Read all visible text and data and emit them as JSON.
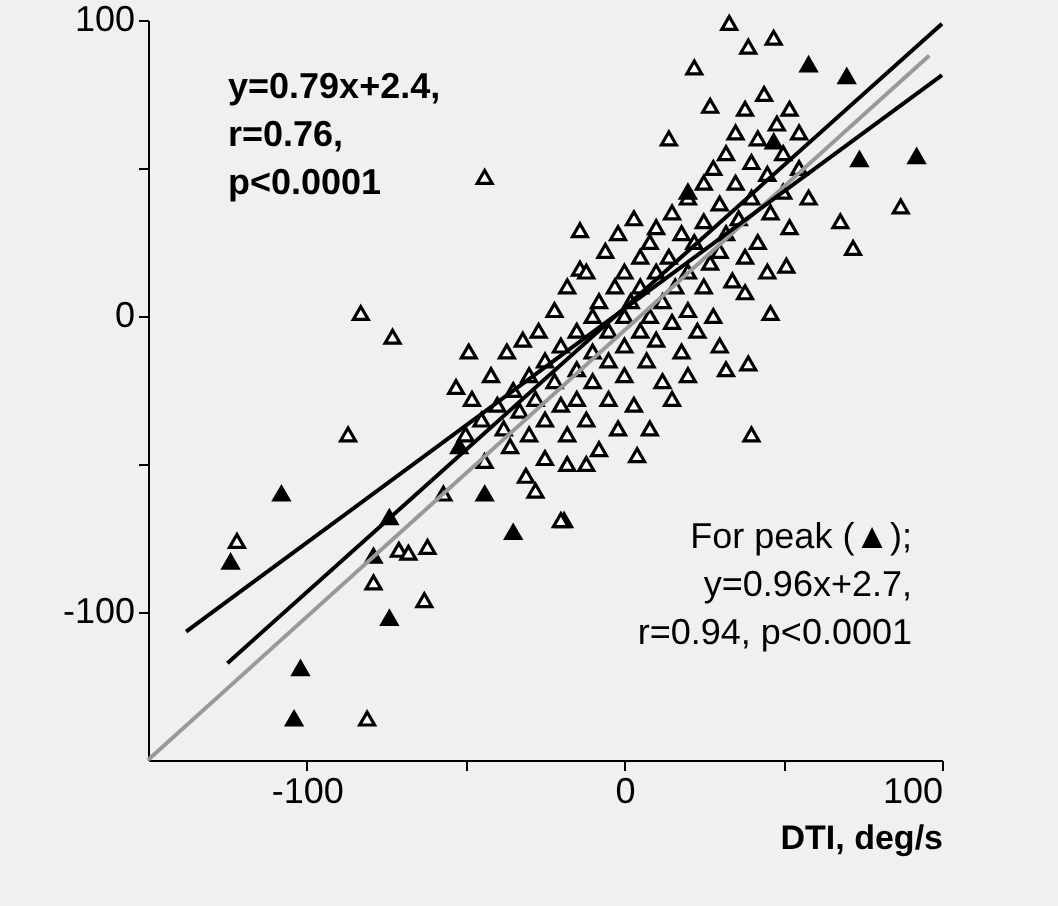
{
  "chart_data": {
    "type": "scatter",
    "xlabel": "DTI, deg/s",
    "xlim": [
      -150,
      100
    ],
    "ylim": [
      -150,
      100
    ],
    "xticks": [
      -100,
      {
        "value": -50,
        "label": null
      },
      0,
      {
        "value": 50,
        "label": null
      },
      100
    ],
    "yticks": [
      -100,
      {
        "value": -50,
        "label": null
      },
      0,
      {
        "value": 50,
        "label": null
      },
      100
    ],
    "grid": false,
    "annotations": [
      "y=0.79x+2.4,\nr=0.76,\np<0.0001",
      "For peak (▲);\ny=0.96x+2.7,\nr=0.94, p<0.0001"
    ],
    "series": [
      {
        "marker": "triangle",
        "color": "#ffffff",
        "x": [
          -44,
          -83,
          -73,
          -49,
          -53,
          -87,
          -14,
          -14,
          33,
          47,
          39,
          22,
          27,
          14,
          87,
          68,
          72,
          51,
          46,
          32,
          39,
          40,
          4,
          -19,
          -122,
          -57,
          -31,
          -28,
          -20,
          -71,
          -68,
          -62,
          -79,
          -63,
          -81,
          -44,
          -36,
          -45,
          -40,
          -38,
          -35,
          -33,
          -30,
          -30,
          -28,
          -25,
          -25,
          -22,
          -20,
          -20,
          -18,
          -15,
          -15,
          -15,
          -12,
          -10,
          -10,
          -10,
          -8,
          -8,
          -5,
          -5,
          -5,
          -3,
          -2,
          0,
          0,
          0,
          0,
          2,
          3,
          5,
          5,
          5,
          7,
          8,
          8,
          10,
          10,
          10,
          12,
          12,
          14,
          15,
          15,
          16,
          18,
          18,
          20,
          20,
          20,
          22,
          23,
          25,
          25,
          25,
          27,
          28,
          28,
          30,
          30,
          30,
          32,
          32,
          34,
          35,
          35,
          36,
          38,
          38,
          40,
          40,
          42,
          42,
          44,
          45,
          46,
          48,
          50,
          50,
          52,
          55,
          55,
          -50,
          -48,
          -42,
          -37,
          -32,
          -27,
          -22,
          -18,
          -12,
          -6,
          -2,
          3,
          -18,
          -25,
          -12,
          8,
          15,
          20,
          38,
          45,
          52,
          58
        ],
        "values": [
          47,
          1,
          -7,
          -12,
          -24,
          -40,
          29,
          16,
          99,
          94,
          91,
          84,
          71,
          60,
          37,
          32,
          23,
          17,
          1,
          -18,
          -16,
          -40,
          -47,
          -69,
          -76,
          -60,
          -54,
          -59,
          -69,
          -79,
          -80,
          -78,
          -90,
          -96,
          -136,
          -49,
          -44,
          -35,
          -30,
          -38,
          -25,
          -32,
          -20,
          -40,
          -28,
          -15,
          -35,
          -22,
          -10,
          -30,
          -40,
          -5,
          -18,
          -28,
          -35,
          0,
          -12,
          -22,
          5,
          -45,
          -5,
          -15,
          -28,
          10,
          -38,
          0,
          -10,
          -20,
          15,
          5,
          -30,
          20,
          -5,
          10,
          -15,
          25,
          0,
          15,
          -8,
          30,
          5,
          -22,
          20,
          35,
          -2,
          10,
          28,
          -12,
          40,
          15,
          2,
          25,
          -5,
          45,
          32,
          10,
          18,
          50,
          0,
          38,
          22,
          -10,
          55,
          28,
          12,
          45,
          62,
          33,
          20,
          70,
          52,
          40,
          60,
          25,
          75,
          48,
          35,
          65,
          55,
          42,
          70,
          50,
          62,
          -40,
          -28,
          -20,
          -12,
          -8,
          -5,
          2,
          10,
          15,
          22,
          28,
          33,
          -50,
          -48,
          -50,
          -38,
          -28,
          -20,
          8,
          15,
          30,
          40
        ]
      },
      {
        "marker": "triangle",
        "color": "#000000",
        "x": [
          -108,
          -74,
          -124,
          -79,
          -74,
          -102,
          -104,
          -44,
          -35,
          -52,
          58,
          70,
          74,
          92,
          47,
          20
        ],
        "values": [
          -60,
          -68,
          -83,
          -81,
          -102,
          -119,
          -136,
          -60,
          -73,
          -44,
          85,
          81,
          53,
          54,
          59,
          42
        ]
      },
      {
        "type": "line",
        "color": "#999999",
        "x": [
          -150,
          96
        ],
        "values": [
          -150,
          88
        ]
      },
      {
        "type": "line",
        "color": "#000000",
        "x": [
          -138,
          100
        ],
        "values": [
          -106.6,
          81.4
        ]
      },
      {
        "type": "line",
        "color": "#000000",
        "x": [
          -125,
          100
        ],
        "values": [
          -117.3,
          98.7
        ]
      }
    ]
  }
}
